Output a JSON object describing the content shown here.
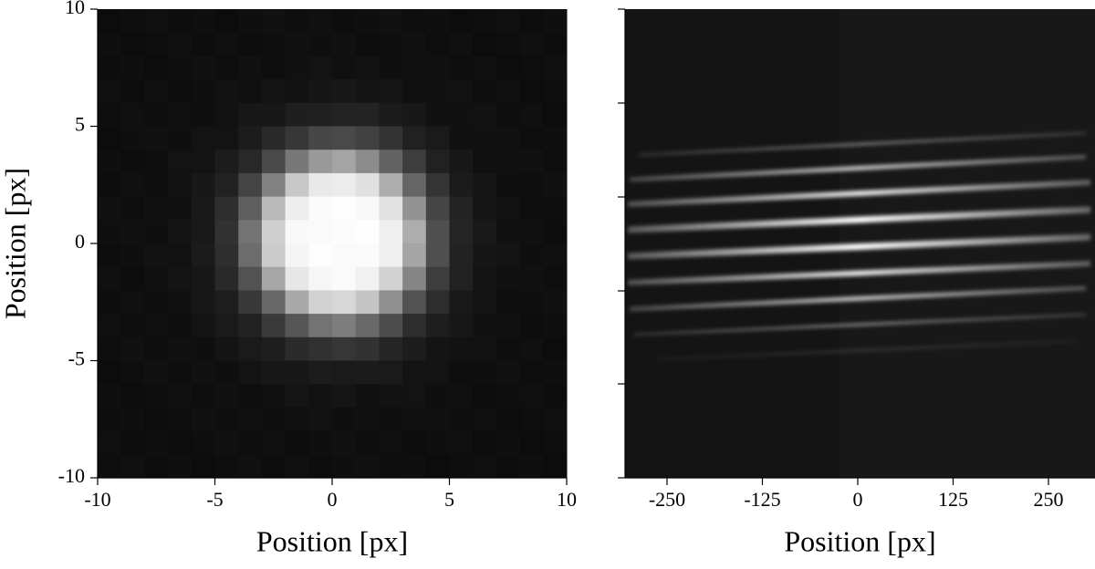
{
  "chart_data": [
    {
      "type": "image",
      "xlabel": "Position [px]",
      "ylabel": "Position [px]",
      "xlim": [
        -10,
        10
      ],
      "ylim": [
        -10,
        10
      ],
      "xticks": [
        -10,
        -5,
        0,
        5,
        10
      ],
      "yticks": [
        -10,
        -5,
        0,
        5,
        10
      ]
    },
    {
      "type": "image",
      "xlabel": "Position [px]",
      "xlim": [
        -305,
        311
      ],
      "xticks": [
        -250,
        -125,
        0,
        125,
        250
      ]
    }
  ]
}
